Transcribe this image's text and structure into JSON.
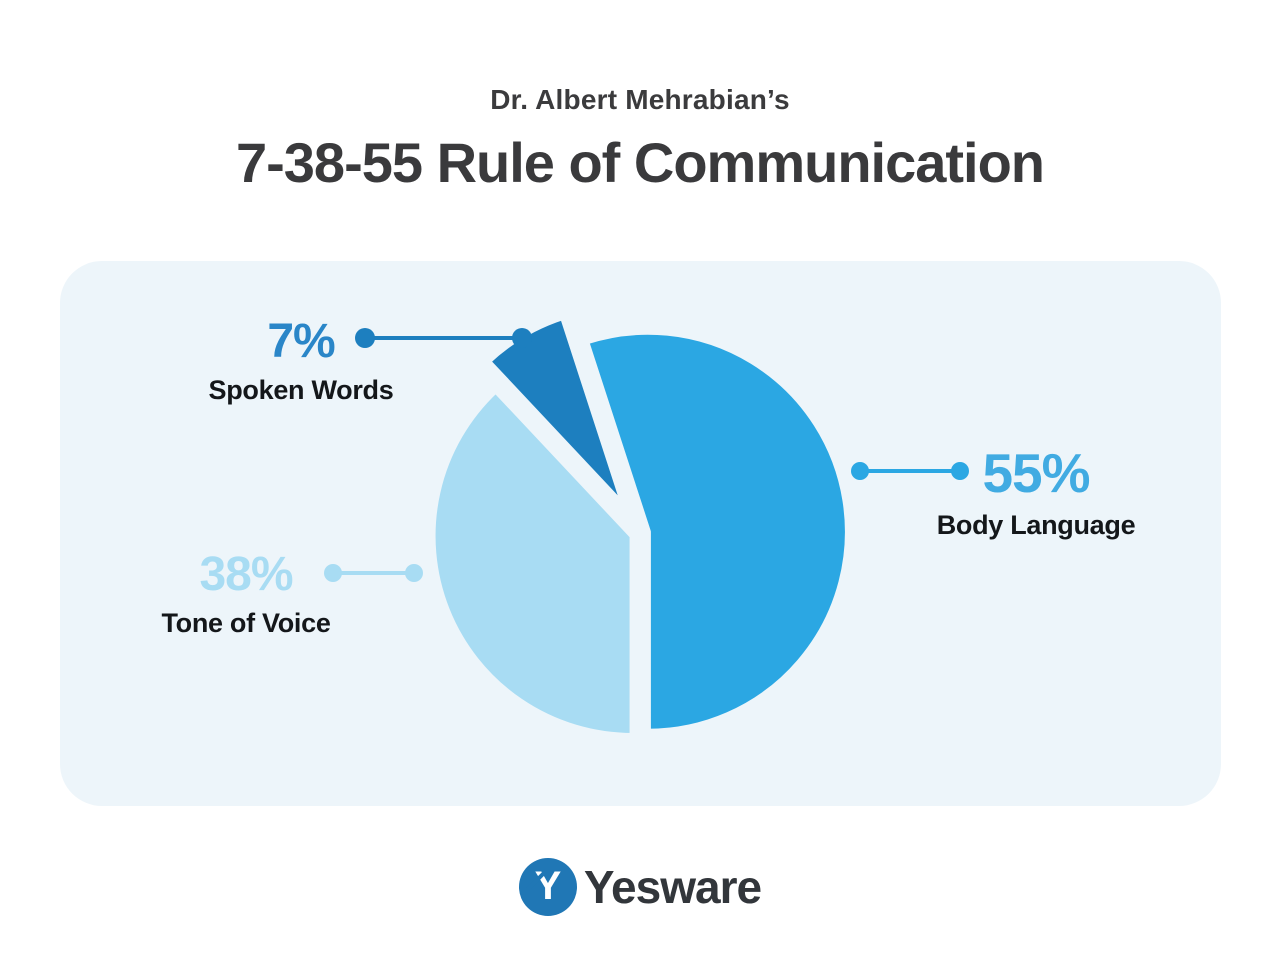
{
  "header": {
    "eyebrow": "Dr. Albert Mehrabian’s",
    "title": "7-38-55 Rule of Communication"
  },
  "chart_data": {
    "type": "pie",
    "title": "Dr. Albert Mehrabian’s 7-38-55 Rule of Communication",
    "categories": [
      "Body Language",
      "Tone of Voice",
      "Spoken Words"
    ],
    "values": [
      55,
      38,
      7
    ],
    "unit": "%",
    "legend_position": "callouts",
    "background": "#EDF5FA",
    "slices": [
      {
        "name": "Body Language",
        "value": 55,
        "color": "#2BA7E3"
      },
      {
        "name": "Tone of Voice",
        "value": 38,
        "color": "#A8DCF3"
      },
      {
        "name": "Spoken Words",
        "value": 7,
        "color": "#1D7FBF"
      }
    ],
    "callouts": [
      {
        "value_label": "7%",
        "label": "Spoken Words",
        "value_color": "#2A86C8",
        "line_color": "#1D7FBF"
      },
      {
        "value_label": "55%",
        "label": "Body Language",
        "value_color": "#41ABE2",
        "line_color": "#2BA7E3"
      },
      {
        "value_label": "38%",
        "label": "Tone of Voice",
        "value_color": "#A8DCF3",
        "line_color": "#A8DCF3"
      }
    ]
  },
  "footer": {
    "brand": "Yesware",
    "logo_color": "#2077B5",
    "wordmark_color": "#32363B"
  }
}
